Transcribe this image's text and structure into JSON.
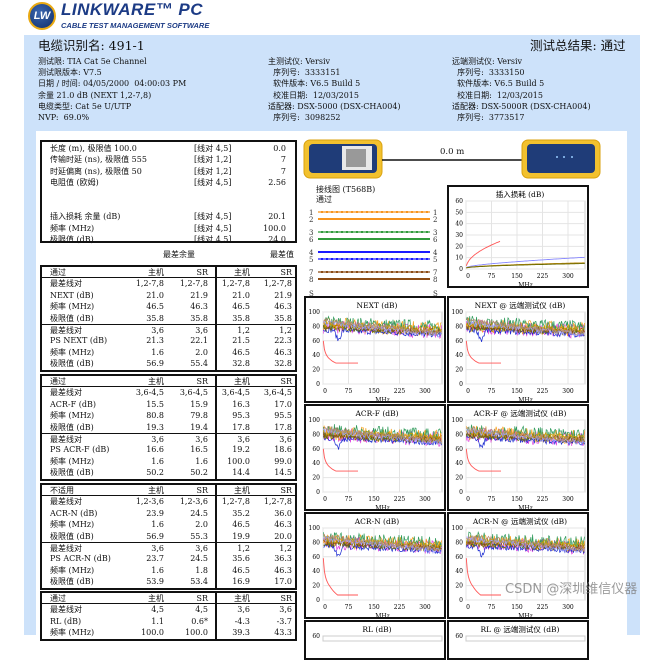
{
  "logo": {
    "mark": "LW",
    "name": "LINKWARE™ PC",
    "tagline": "CABLE TEST MANAGEMENT SOFTWARE"
  },
  "header": {
    "title": "电缆识别名: 491-1",
    "result": "测试总结果: 通过",
    "left": [
      "测试限: TIA Cat 5e Channel",
      "测试限版本: V7.5",
      "日期 / 时间: 04/05/2000  04:00:03 PM",
      "余量 21.0 dB (NEXT 1,2-7,8)",
      "电缆类型: Cat 5e U/UTP",
      "NVP:  69.0%"
    ],
    "main": [
      "主测试仪: Versiv",
      "  序列号:  3333151",
      "  软件版本: V6.5 Build 5",
      "  校准日期:  12/03/2015",
      "适配器: DSX-5000 (DSX-CHA004)",
      "  序列号:  3098252"
    ],
    "remote": [
      "远端测试仪: Versiv",
      "  序列号:  3333150",
      "  软件版本: V6.5 Build 5",
      "  校准日期:  12/03/2015",
      "适配器: DSX-5000R (DSX-CHA004)",
      "  序列号:  3773517"
    ]
  },
  "summary": [
    [
      "长度 (m), 极限值 100.0",
      "[线对 4,5]",
      "0.0"
    ],
    [
      "传输时延 (ns), 极限值 555",
      "[线对 1,2]",
      "7"
    ],
    [
      "时延偏离 (ns), 极限值 50",
      "[线对 1,2]",
      "7"
    ],
    [
      "电阻值 (欧姆)",
      "[线对 4,5]",
      "2.56"
    ],
    [
      "",
      "",
      ""
    ],
    [
      "",
      "",
      ""
    ],
    [
      "插入损耗 余量 (dB)",
      "[线对 4,5]",
      "20.1"
    ],
    [
      "频率 (MHz)",
      "[线对 4,5]",
      "100.0"
    ],
    [
      "极限值 (dB)",
      "[线对 4,5]",
      "24.0"
    ]
  ],
  "col_titles": {
    "margin": "最差余量",
    "value": "最差值"
  },
  "tables": [
    {
      "status": "通过",
      "cols": [
        "主机",
        "SR",
        "主机",
        "SR"
      ],
      "sections": [
        [
          [
            "最差线对",
            "1,2-7,8",
            "1,2-7,8",
            "1,2-7,8",
            "1,2-7,8"
          ],
          [
            "NEXT (dB)",
            "21.0",
            "21.9",
            "21.0",
            "21.9"
          ],
          [
            "频率 (MHz)",
            "46.5",
            "46.3",
            "46.5",
            "46.3"
          ],
          [
            "极限值 (dB)",
            "35.8",
            "35.8",
            "35.8",
            "35.8"
          ]
        ],
        [
          [
            "最差线对",
            "3,6",
            "3,6",
            "1,2",
            "1,2"
          ],
          [
            "PS NEXT (dB)",
            "21.3",
            "22.1",
            "21.5",
            "22.3"
          ],
          [
            "频率 (MHz)",
            "1.6",
            "2.0",
            "46.5",
            "46.3"
          ],
          [
            "极限值 (dB)",
            "56.9",
            "55.4",
            "32.8",
            "32.8"
          ]
        ]
      ]
    },
    {
      "status": "通过",
      "cols": [
        "主机",
        "SR",
        "主机",
        "SR"
      ],
      "sections": [
        [
          [
            "最差线对",
            "3,6-4,5",
            "3,6-4,5",
            "3,6-4,5",
            "3,6-4,5"
          ],
          [
            "ACR-F (dB)",
            "15.5",
            "15.9",
            "16.3",
            "17.0"
          ],
          [
            "频率 (MHz)",
            "80.8",
            "79.8",
            "95.3",
            "95.5"
          ],
          [
            "极限值 (dB)",
            "19.3",
            "19.4",
            "17.8",
            "17.8"
          ]
        ],
        [
          [
            "最差线对",
            "3,6",
            "3,6",
            "3,6",
            "3,6"
          ],
          [
            "PS ACR-F (dB)",
            "16.6",
            "16.5",
            "19.2",
            "18.6"
          ],
          [
            "频率 (MHz)",
            "1.6",
            "1.6",
            "100.0",
            "99.0"
          ],
          [
            "极限值 (dB)",
            "50.2",
            "50.2",
            "14.4",
            "14.5"
          ]
        ]
      ]
    },
    {
      "status": "不适用",
      "cols": [
        "主机",
        "SR",
        "主机",
        "SR"
      ],
      "sections": [
        [
          [
            "最差线对",
            "1,2-3,6",
            "1,2-3,6",
            "1,2-7,8",
            "1,2-7,8"
          ],
          [
            "ACR-N (dB)",
            "23.9",
            "24.5",
            "35.2",
            "36.0"
          ],
          [
            "频率 (MHz)",
            "1.6",
            "2.0",
            "46.5",
            "46.3"
          ],
          [
            "极限值 (dB)",
            "56.9",
            "55.3",
            "19.9",
            "20.0"
          ]
        ],
        [
          [
            "最差线对",
            "3,6",
            "3,6",
            "1,2",
            "1,2"
          ],
          [
            "PS ACR-N (dB)",
            "23.7",
            "24.5",
            "35.6",
            "36.3"
          ],
          [
            "频率 (MHz)",
            "1.6",
            "1.8",
            "46.5",
            "46.3"
          ],
          [
            "极限值 (dB)",
            "53.9",
            "53.4",
            "16.9",
            "17.0"
          ]
        ]
      ]
    },
    {
      "status": "通过",
      "cols": [
        "主机",
        "SR",
        "主机",
        "SR"
      ],
      "sections": [
        [
          [
            "最差线对",
            "4,5",
            "4,5",
            "3,6",
            "3,6"
          ],
          [
            "RL (dB)",
            "1.1",
            "0.6*",
            "-4.3",
            "-3.7"
          ],
          [
            "频率 (MHz)",
            "100.0",
            "100.0",
            "39.3",
            "43.3"
          ]
        ]
      ]
    }
  ],
  "length_readout": "0.0 m",
  "wiremap": {
    "title": "接线图 (T568B)",
    "status": "通过",
    "pins": [
      "1",
      "2",
      "3",
      "6",
      "4",
      "5",
      "7",
      "8",
      "S"
    ],
    "colors": [
      "#f7941d",
      "#f7941d",
      "#2e9a3a",
      "#2e9a3a",
      "#1a1aff",
      "#1a1aff",
      "#8b4a12",
      "#8b4a12"
    ]
  },
  "charts": [
    {
      "title": "插入损耗 (dB)",
      "yticks": [
        "60",
        "50",
        "40",
        "30",
        "20",
        "10",
        "0"
      ],
      "xticks": [
        "0",
        "75",
        "150",
        "225",
        "300"
      ],
      "xlabel": "MHz",
      "kind": "il"
    },
    {
      "title": "NEXT (dB)",
      "yticks": [
        "100",
        "80",
        "60",
        "40",
        "20",
        "0"
      ],
      "xticks": [
        "0",
        "75",
        "150",
        "225",
        "300"
      ],
      "xlabel": "MHz",
      "kind": "xt"
    },
    {
      "title": "NEXT @ 远端测试仪 (dB)",
      "yticks": [
        "100",
        "80",
        "60",
        "40",
        "20",
        "0"
      ],
      "xticks": [
        "0",
        "75",
        "150",
        "225",
        "300"
      ],
      "xlabel": "MHz",
      "kind": "xt"
    },
    {
      "title": "ACR-F (dB)",
      "yticks": [
        "100",
        "80",
        "60",
        "40",
        "20",
        "0"
      ],
      "xticks": [
        "0",
        "75",
        "150",
        "225",
        "300"
      ],
      "xlabel": "MHz",
      "kind": "af"
    },
    {
      "title": "ACR-F @ 远端测试仪 (dB)",
      "yticks": [
        "100",
        "80",
        "60",
        "40",
        "20",
        "0"
      ],
      "xticks": [
        "0",
        "75",
        "150",
        "225",
        "300"
      ],
      "xlabel": "MHz",
      "kind": "af"
    },
    {
      "title": "ACR-N (dB)",
      "yticks": [
        "100",
        "80",
        "60",
        "40",
        "20",
        "0"
      ],
      "xticks": [
        "0",
        "75",
        "150",
        "225",
        "300"
      ],
      "xlabel": "MHz",
      "kind": "an"
    },
    {
      "title": "ACR-N @ 远端测试仪 (dB)",
      "yticks": [
        "100",
        "80",
        "60",
        "40",
        "20",
        "0"
      ],
      "xticks": [
        "0",
        "75",
        "150",
        "225",
        "300"
      ],
      "xlabel": "MHz",
      "kind": "an"
    },
    {
      "title": "RL (dB)",
      "yticks": [
        "60"
      ],
      "xticks": [],
      "xlabel": "",
      "kind": "rl"
    },
    {
      "title": "RL @ 远端测试仪 (dB)",
      "yticks": [
        "60"
      ],
      "xticks": [],
      "xlabel": "",
      "kind": "rl"
    }
  ],
  "watermark": "CSDN @深圳维信仪器"
}
